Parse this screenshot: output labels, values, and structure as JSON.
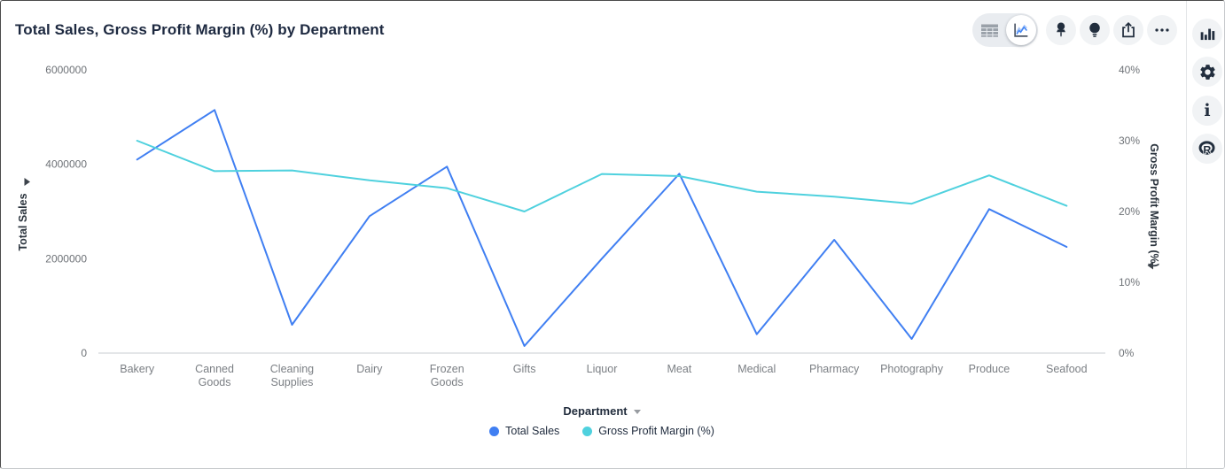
{
  "header": {
    "title": "Total Sales, Gross Profit Margin (%) by Department"
  },
  "toolbar": {
    "view_toggle": {
      "options": [
        "table-view-icon",
        "chart-view-icon"
      ],
      "selected": "chart-view-icon"
    },
    "buttons": [
      "pin-icon",
      "lightbulb-icon",
      "share-icon",
      "more-options-icon"
    ]
  },
  "rail": {
    "buttons": [
      "bar-chart-icon",
      "settings-gear-icon",
      "info-icon",
      "r-analytics-icon"
    ]
  },
  "colors": {
    "series_total_sales": "#407ff2",
    "series_gpm": "#4fd1de",
    "title_text": "#1d2940"
  },
  "chart_data": {
    "type": "line",
    "title": "Total Sales, Gross Profit Margin (%) by Department",
    "categories": [
      "Bakery",
      "Canned Goods",
      "Cleaning Supplies",
      "Dairy",
      "Frozen Goods",
      "Gifts",
      "Liquor",
      "Meat",
      "Medical",
      "Pharmacy",
      "Photography",
      "Produce",
      "Seafood"
    ],
    "series": [
      {
        "name": "Total Sales",
        "axis": "left",
        "color": "#407ff2",
        "values": [
          4100000,
          5150000,
          600000,
          2900000,
          3950000,
          150000,
          2000000,
          3800000,
          400000,
          2400000,
          300000,
          3050000,
          2250000
        ]
      },
      {
        "name": "Gross Profit Margin (%)",
        "axis": "right",
        "color": "#4fd1de",
        "values": [
          30.0,
          25.7,
          25.8,
          24.4,
          23.3,
          20.0,
          25.3,
          25.0,
          22.8,
          22.1,
          21.1,
          25.1,
          20.8
        ]
      }
    ],
    "left_axis": {
      "label": "Total Sales",
      "range": [
        0,
        6000000
      ],
      "ticks": [
        "0",
        "2000000",
        "4000000",
        "6000000"
      ]
    },
    "right_axis": {
      "label": "Gross Profit Margin (%)",
      "range": [
        0,
        40
      ],
      "ticks": [
        "0%",
        "10%",
        "20%",
        "30%",
        "40%"
      ]
    },
    "x_axis": {
      "label": "Department"
    },
    "legend_position": "bottom",
    "grid": false
  }
}
